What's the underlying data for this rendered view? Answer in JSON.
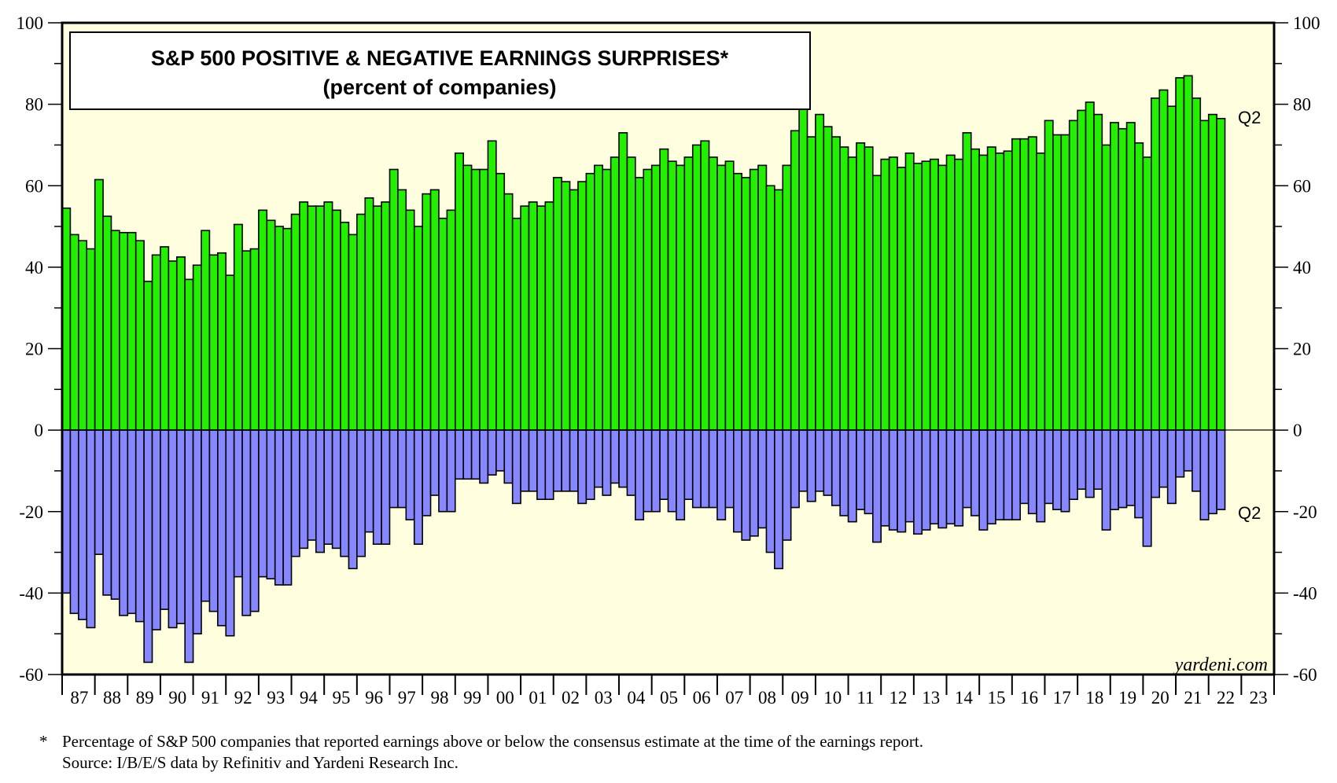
{
  "chart_data": {
    "type": "bar",
    "title": "S&P 500 POSITIVE & NEGATIVE EARNINGS SURPRISES*",
    "subtitle": "(percent of companies)",
    "xlabel": "",
    "ylabel": "",
    "ylim": [
      -60,
      100
    ],
    "yticks": [
      "100",
      "80",
      "60",
      "40",
      "20",
      "0",
      "-20",
      "-40",
      "-60"
    ],
    "ytick_values": [
      100,
      80,
      60,
      40,
      20,
      0,
      -20,
      -40,
      -60
    ],
    "x_start": "1987 Q1",
    "x_end": "2022 Q2",
    "year_labels": [
      "87",
      "88",
      "89",
      "90",
      "91",
      "92",
      "93",
      "94",
      "95",
      "96",
      "97",
      "98",
      "99",
      "00",
      "01",
      "02",
      "03",
      "04",
      "05",
      "06",
      "07",
      "08",
      "09",
      "10",
      "11",
      "12",
      "13",
      "14",
      "15",
      "16",
      "17",
      "18",
      "19",
      "20",
      "21",
      "22",
      "23"
    ],
    "grid": false,
    "annotations": {
      "positive_last": "Q2",
      "negative_last": "Q2",
      "watermark": "yardeni.com"
    },
    "colors": {
      "positive": "#22f000",
      "negative": "#8787ff",
      "background": "#ffffe0"
    },
    "series": [
      {
        "name": "Positive surprises",
        "values": [
          54.5,
          48,
          46.5,
          44.5,
          61.5,
          52.5,
          49,
          48.5,
          48.5,
          46.5,
          36.5,
          43,
          45,
          41.5,
          42.5,
          37,
          40.5,
          49,
          43,
          43.5,
          38,
          50.5,
          44,
          44.5,
          54,
          51.5,
          50,
          49.5,
          53,
          56,
          55,
          55,
          56,
          54,
          51,
          48,
          53,
          57,
          55,
          56,
          64,
          59,
          54,
          50,
          58,
          59,
          52,
          54,
          68,
          65,
          64,
          64,
          71,
          63,
          58,
          52,
          55,
          56,
          55,
          56,
          62,
          61,
          59,
          61,
          63,
          65,
          64,
          67,
          73,
          67,
          62,
          64,
          65,
          69,
          66,
          65,
          67,
          70,
          71,
          67,
          65,
          66,
          63,
          62,
          64,
          65,
          60,
          59,
          65,
          73.5,
          79,
          72,
          77.5,
          74.5,
          72,
          69.5,
          67,
          70.5,
          69.5,
          62.5,
          66.5,
          67,
          64.5,
          68,
          65.5,
          66,
          66.5,
          65,
          67.5,
          66.5,
          73,
          69,
          67.5,
          69.5,
          68,
          68.5,
          71.5,
          71.5,
          72,
          68,
          76,
          72.5,
          72.5,
          76,
          78.5,
          80.5,
          77.5,
          70,
          75.5,
          74,
          75.5,
          70.5,
          67,
          81.5,
          83.5,
          79.5,
          86.5,
          87,
          81.5,
          76,
          77.5,
          76.5
        ]
      },
      {
        "name": "Negative surprises",
        "values": [
          -40,
          -45,
          -46.5,
          -48.5,
          -30.5,
          -40.5,
          -41.5,
          -45.5,
          -45,
          -47,
          -57,
          -49,
          -44,
          -48.5,
          -47.5,
          -57,
          -50,
          -42,
          -44.5,
          -48,
          -50.5,
          -36,
          -45.5,
          -44.5,
          -36,
          -36.5,
          -38,
          -38,
          -31,
          -29,
          -27,
          -30,
          -28,
          -29,
          -31,
          -34,
          -31,
          -25,
          -28,
          -28,
          -19,
          -19,
          -22,
          -28,
          -21,
          -16,
          -20,
          -20,
          -12,
          -12,
          -12,
          -13,
          -11,
          -10,
          -13,
          -18,
          -15,
          -15,
          -17,
          -17,
          -15,
          -15,
          -15,
          -18,
          -17,
          -14,
          -16,
          -13,
          -14,
          -16,
          -22,
          -20,
          -20,
          -17,
          -20,
          -22,
          -17,
          -19,
          -19,
          -19,
          -22,
          -19,
          -25,
          -27,
          -26,
          -24,
          -30,
          -34,
          -27,
          -19,
          -15,
          -17.5,
          -15,
          -16,
          -18.5,
          -21,
          -22.5,
          -19.5,
          -20.5,
          -27.5,
          -23.5,
          -24.5,
          -25,
          -22.5,
          -25.5,
          -24.5,
          -23,
          -24,
          -23,
          -23.5,
          -19,
          -21,
          -24.5,
          -23,
          -22,
          -22,
          -22,
          -18,
          -20.5,
          -22.5,
          -18,
          -19.5,
          -20,
          -17,
          -14.5,
          -16.5,
          -14.5,
          -24.5,
          -19.5,
          -19,
          -18.5,
          -21.5,
          -28.5,
          -16.5,
          -14,
          -18,
          -11.5,
          -10,
          -15,
          -22,
          -20.5,
          -19.5
        ]
      }
    ]
  },
  "footnote": {
    "marker": "*",
    "line1": "Percentage of S&P 500 companies that reported earnings above or below the consensus estimate at the time of the earnings report.",
    "line2": "Source: I/B/E/S data by Refinitiv and Yardeni Research Inc."
  }
}
